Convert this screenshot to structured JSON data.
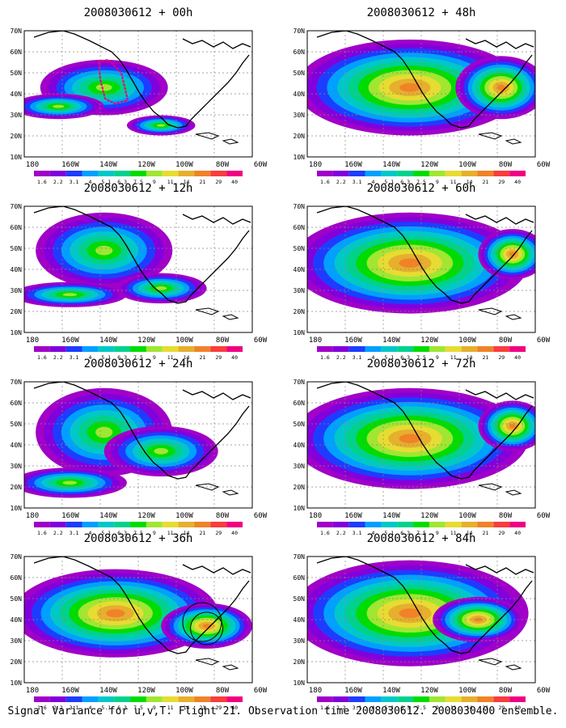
{
  "panels": [
    {
      "title": "2008030612 + 00h",
      "annotation": "dotted-region"
    },
    {
      "title": "2008030612 + 48h",
      "annotation": ""
    },
    {
      "title": "2008030612 + 12h",
      "annotation": ""
    },
    {
      "title": "2008030612 + 60h",
      "annotation": ""
    },
    {
      "title": "2008030612 + 24h",
      "annotation": ""
    },
    {
      "title": "2008030612 + 72h",
      "annotation": ""
    },
    {
      "title": "2008030612 + 36h",
      "annotation": "circles"
    },
    {
      "title": "2008030612 + 84h",
      "annotation": ""
    }
  ],
  "lat_labels": [
    "70N",
    "60N",
    "50N",
    "40N",
    "30N",
    "20N",
    "10N"
  ],
  "lon_labels": [
    "180",
    "160W",
    "140W",
    "120W",
    "100W",
    "80W",
    "60W"
  ],
  "colorbar": {
    "labels": [
      "1.6",
      "2.2",
      "3.1",
      "4",
      "5.1",
      "6.3",
      "7.5",
      "9",
      "11",
      "14",
      "21",
      "29",
      "40"
    ],
    "colors": [
      "#a000c8",
      "#8200dc",
      "#1e3cff",
      "#00a0ff",
      "#00c8c8",
      "#00d28c",
      "#00dc00",
      "#a0e632",
      "#e6dc32",
      "#e6af2d",
      "#f08228",
      "#fa3c3c",
      "#f00082"
    ]
  },
  "footer": "Signal Variance for u,v,T. Flight 21. Observation time 2008030612. 2008030400 ensemble."
}
